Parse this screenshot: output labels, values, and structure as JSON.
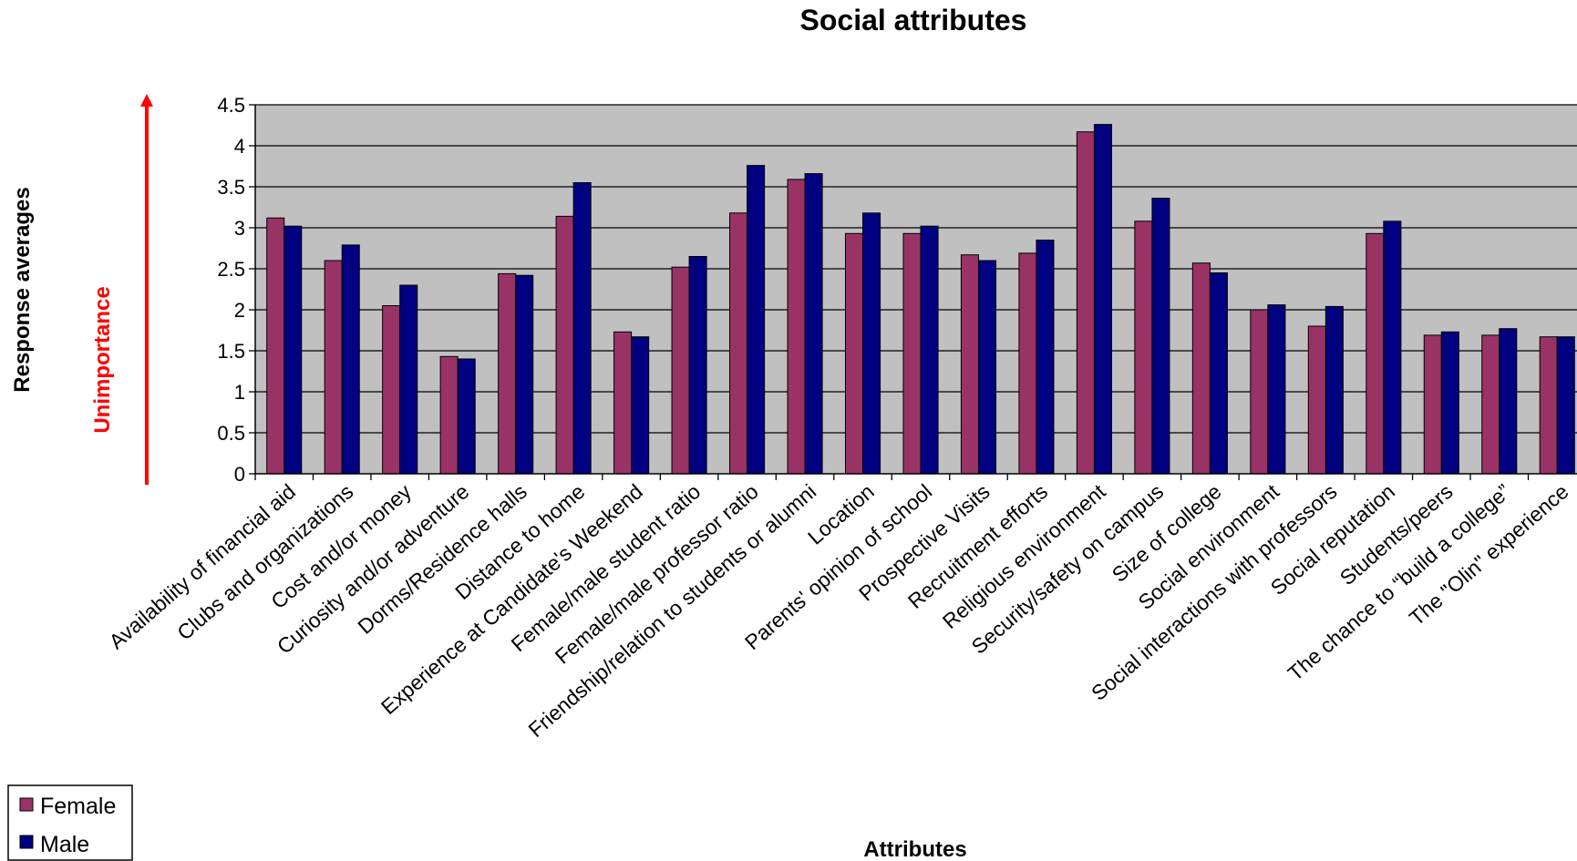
{
  "chart_data": {
    "type": "bar",
    "title": "Social attributes",
    "xlabel": "Attributes",
    "ylabel": "Response averages",
    "annotation": "Unimportance",
    "ylim": [
      0,
      4.5
    ],
    "yticks": [
      "0",
      "0.5",
      "1",
      "1.5",
      "2",
      "2.5",
      "3",
      "3.5",
      "4",
      "4.5"
    ],
    "grid": true,
    "legend_position": "bottom-left",
    "categories": [
      "Availability of financial aid",
      "Clubs and organizations",
      "Cost and/or money",
      "Curiosity and/or adventure",
      "Dorms/Residence halls",
      "Distance to home",
      "Experience at Candidate's Weekend",
      "Female/male student ratio",
      "Female/male professor ratio",
      "Friendship/relation to students or alumni",
      "Location",
      "Parents' opinion of school",
      "Prospective Visits",
      "Recruitment efforts",
      "Religious environment",
      "Security/safety on campus",
      "Size of college",
      "Social environment",
      "Social interactions with professors",
      "Social reputation",
      "Students/peers",
      "The chance to “build a college”",
      "The \"Olin\" experience"
    ],
    "series": [
      {
        "name": "Female",
        "color": "#993366",
        "values": [
          3.12,
          2.6,
          2.05,
          1.43,
          2.44,
          3.14,
          1.73,
          2.52,
          3.18,
          3.59,
          2.93,
          2.93,
          2.67,
          2.69,
          4.17,
          3.08,
          2.57,
          2.0,
          1.8,
          2.93,
          1.69,
          1.69,
          1.67
        ]
      },
      {
        "name": "Male",
        "color": "#000080",
        "values": [
          3.02,
          2.79,
          2.3,
          1.4,
          2.42,
          3.55,
          1.67,
          2.65,
          3.76,
          3.66,
          3.18,
          3.02,
          2.6,
          2.85,
          4.26,
          3.36,
          2.45,
          2.06,
          2.04,
          3.08,
          1.73,
          1.77,
          1.67
        ]
      }
    ],
    "colors": {
      "plot_background": "#c0c0c0",
      "annotation": "#ff0000",
      "gridline": "#000000"
    }
  }
}
